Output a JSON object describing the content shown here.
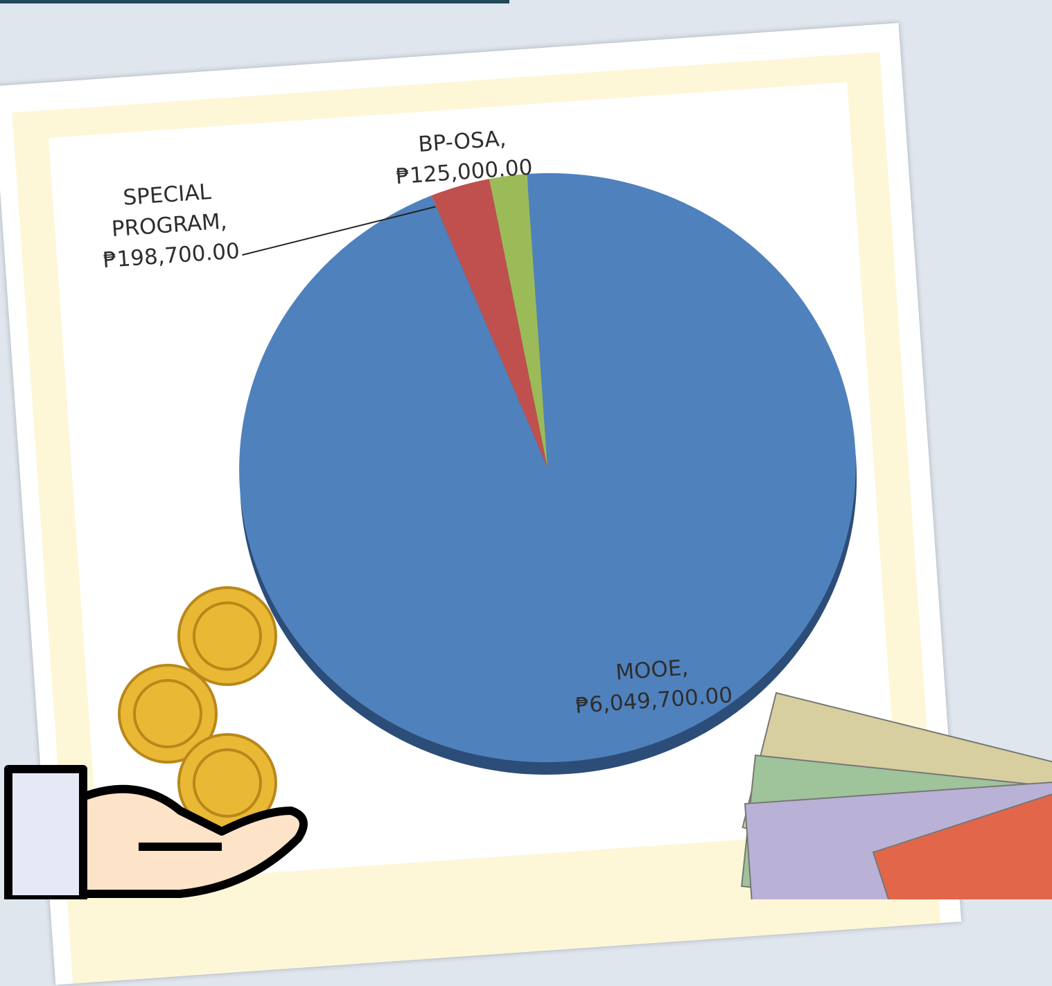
{
  "chart_data": {
    "type": "pie",
    "categories": [
      "MOOE,",
      "SPECIAL PROGRAM,",
      "BP-OSA,"
    ],
    "values": [
      6049700,
      198700,
      125000
    ],
    "value_labels": [
      "₱6,049,700.00",
      "₱198,700.00",
      "₱125,000.00"
    ],
    "colors": [
      "#4f81bd",
      "#c0504d",
      "#9bbb59"
    ]
  }
}
